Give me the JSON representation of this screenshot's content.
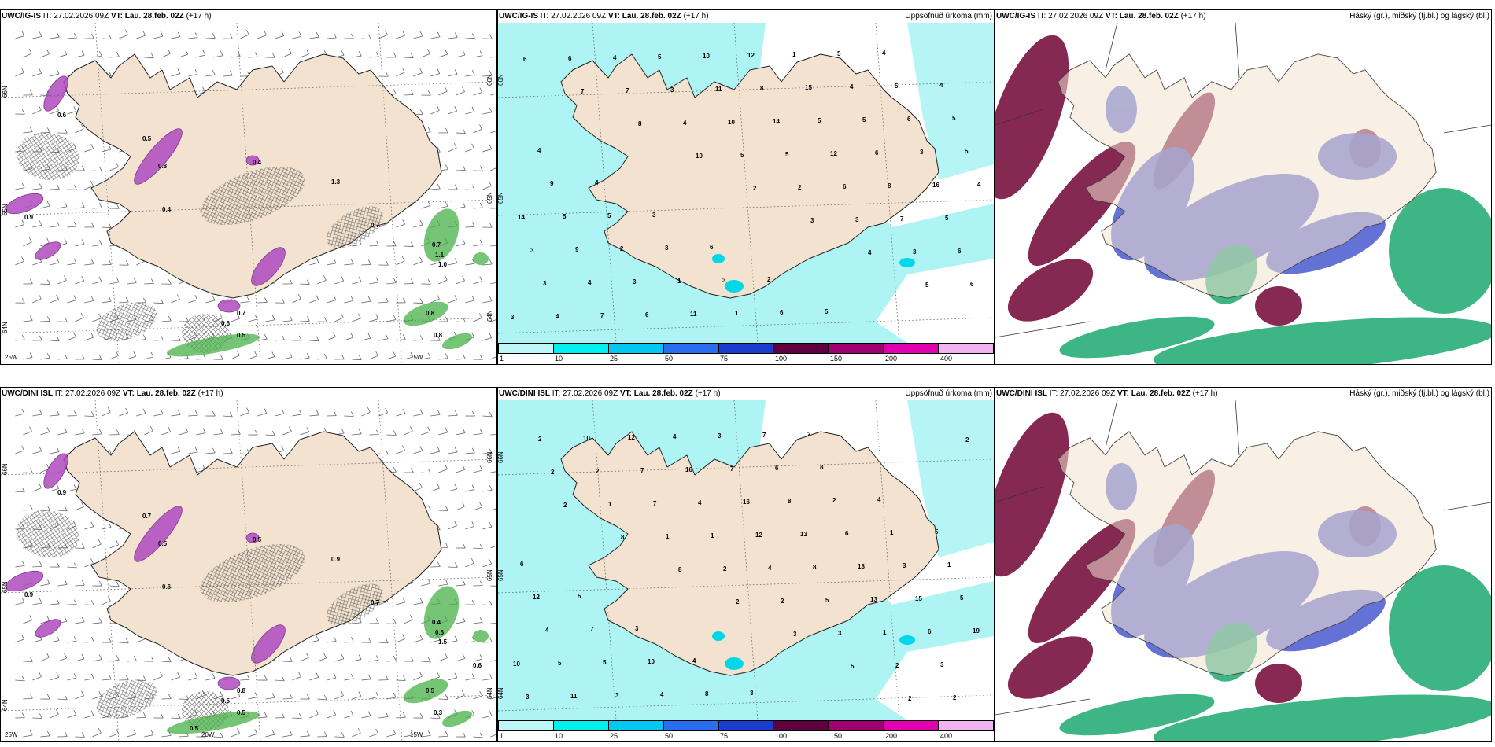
{
  "panels": [
    {
      "id": "top-left",
      "model": "UWC/IG-IS",
      "it_label": "IT:",
      "it_value": "27.02.2026 09Z",
      "vt_label": "VT:",
      "vt_value": "Lau. 28.feb. 02Z",
      "lead": "(+17 h)",
      "right_title": "",
      "lat_labels": [
        "66N",
        "65N",
        "64N"
      ],
      "lon_labels": [
        "25W",
        "15W"
      ],
      "values": [
        "0.6",
        "0.8",
        "0.5",
        "0.9",
        "0.4",
        "0.7",
        "1.1",
        "1.0",
        "0.8",
        "0.7",
        "0.6",
        "0.5",
        "0.4",
        "1.3",
        "0.7",
        "0.8"
      ]
    },
    {
      "id": "top-middle",
      "model": "UWC/IG-IS",
      "it_label": "IT:",
      "it_value": "27.02.2026 09Z",
      "vt_label": "VT:",
      "vt_value": "Lau. 28.feb. 02Z",
      "lead": "(+17 h)",
      "right_title": "Uppsöfnuð úrkoma (mm)",
      "lat_labels": [
        "66N",
        "65N"
      ],
      "values": [
        "6",
        "7",
        "8",
        "10",
        "2",
        "3",
        "4",
        "5",
        "3",
        "6",
        "7",
        "4",
        "5",
        "2",
        "3",
        "3",
        "6",
        "4",
        "4",
        "3",
        "10",
        "5",
        "6",
        "7",
        "6",
        "3",
        "7",
        "5",
        "11",
        "14",
        "12",
        "8",
        "5",
        "3",
        "4",
        "6",
        "10",
        "8",
        "5",
        "6",
        "16",
        "14",
        "9",
        "3",
        "11",
        "12",
        "15",
        "5",
        "3",
        "4",
        "5",
        "2",
        "1",
        "1",
        "1",
        "4",
        "6",
        "5",
        "9",
        "5",
        "3",
        "3",
        "6",
        "5",
        "5",
        "5",
        "4",
        "4",
        "3",
        "6",
        "2",
        "5",
        "4",
        "4"
      ]
    },
    {
      "id": "top-right",
      "model": "UWC/IG-IS",
      "it_label": "IT:",
      "it_value": "27.02.2026 09Z",
      "vt_label": "VT:",
      "vt_value": "Lau. 28.feb. 02Z",
      "lead": "(+17 h)",
      "right_title": "Háský (gr.), miðský (fj.bl.) og lágský (bl.)"
    },
    {
      "id": "bottom-left",
      "model": "UWC/DINI ISL",
      "it_label": "IT:",
      "it_value": "27.02.2026 09Z",
      "vt_label": "VT:",
      "vt_value": "Lau. 28.feb. 02Z",
      "lead": "(+17 h)",
      "right_title": "",
      "lat_labels": [
        "66N",
        "65N",
        "64N"
      ],
      "lon_labels": [
        "25W",
        "20W",
        "15W"
      ],
      "values": [
        "0.9",
        "0.5",
        "0.7",
        "0.9",
        "0.5",
        "0.4",
        "0.6",
        "1.5",
        "0.5",
        "0.8",
        "0.5",
        "0.5",
        "0.6",
        "0.9",
        "0.7",
        "0.3",
        "0.5",
        "0.6"
      ]
    },
    {
      "id": "bottom-middle",
      "model": "UWC/DINI ISL",
      "it_label": "IT:",
      "it_value": "27.02.2026 09Z",
      "vt_label": "VT:",
      "vt_value": "Lau. 28.feb. 02Z",
      "lead": "(+17 h)",
      "right_title": "Uppsöfnuð úrkoma (mm)",
      "lat_labels": [
        "66N",
        "65N",
        "64N"
      ],
      "values": [
        "2",
        "8",
        "8",
        "2",
        "3",
        "5",
        "2",
        "2",
        "2",
        "1",
        "1",
        "2",
        "2",
        "3",
        "2",
        "2",
        "2",
        "2",
        "7",
        "1",
        "4",
        "5",
        "1",
        "3",
        "3",
        "10",
        "7",
        "4",
        "12",
        "8",
        "13",
        "6",
        "10",
        "11",
        "12",
        "16",
        "16",
        "13",
        "18",
        "15",
        "19",
        "5",
        "3",
        "4",
        "7",
        "8",
        "6",
        "3",
        "5",
        "4",
        "5",
        "4",
        "3",
        "6",
        "2",
        "1",
        "1",
        "12",
        "7",
        "10",
        "8",
        "7",
        "8",
        "4",
        "5",
        "6",
        "5",
        "3",
        "4",
        "3",
        "2"
      ]
    },
    {
      "id": "bottom-right",
      "model": "UWC/DINI ISL",
      "it_label": "IT:",
      "it_value": "27.02.2026 09Z",
      "vt_label": "VT:",
      "vt_value": "Lau. 28.feb. 02Z",
      "lead": "(+17 h)",
      "right_title": "Háský (gr.), miðský (fj.bl.) og lágský (bl.)"
    }
  ],
  "precip_colorbar": {
    "labels": [
      "1",
      "10",
      "25",
      "50",
      "75",
      "100",
      "150",
      "200",
      "400"
    ],
    "colors": [
      "#bdf7f7",
      "#00f0f0",
      "#00c8f0",
      "#2a6ef0",
      "#1a3ccf",
      "#600040",
      "#a00070",
      "#e000b0",
      "#f0b4f0"
    ]
  },
  "colors": {
    "land": "#f2e2cf",
    "sea": "#ffffff",
    "precip_light": "#aef4f4",
    "cloud_high": "#1aa870",
    "cloud_mid": "#4a5ad0",
    "cloud_low": "#7a1240",
    "snow": "#b04ac0",
    "rain": "#49b049"
  }
}
